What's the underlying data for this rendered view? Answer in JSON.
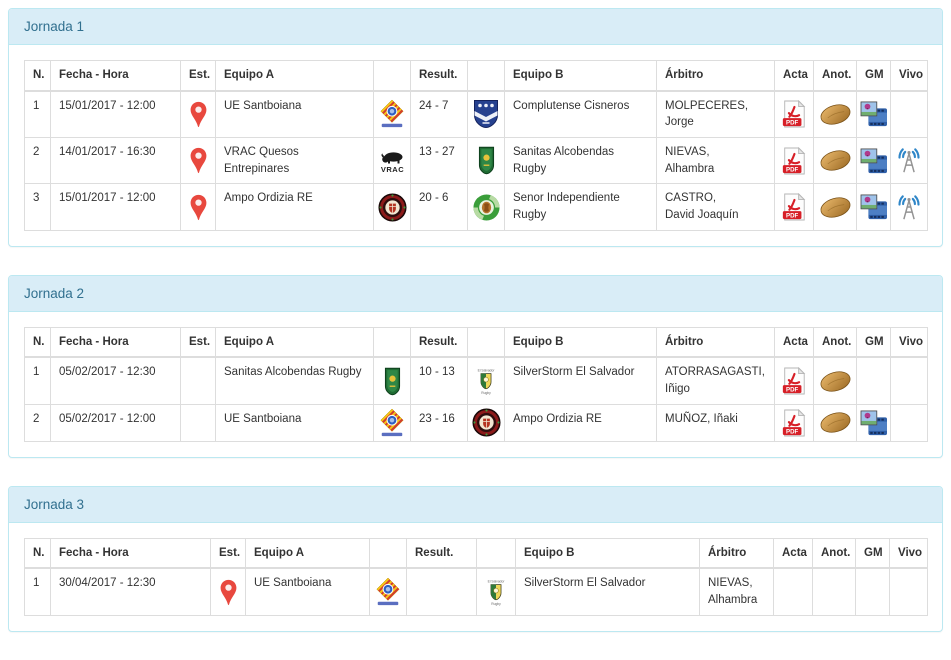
{
  "columns": [
    "N.",
    "Fecha - Hora",
    "Est.",
    "Equipo A",
    "",
    "Result.",
    "",
    "Equipo B",
    "Árbitro",
    "Acta",
    "Anot.",
    "GM",
    "Vivo"
  ],
  "icon_legend": {
    "est": "map-pin-icon",
    "acta": "pdf-document-icon",
    "anot": "rugby-ball-icon",
    "gm": "film-multimedia-icon",
    "vivo": "live-broadcast-antenna-icon"
  },
  "colors": {
    "panel_border": "#bce8f1",
    "panel_heading_bg": "#d9edf7",
    "panel_heading_text": "#31708f",
    "table_border": "#dddddd",
    "text": "#333333",
    "pin_red": "#e8483e",
    "pdf_red": "#d71f27"
  },
  "jornadas": [
    {
      "title": "Jornada 1",
      "rows": [
        {
          "n": "1",
          "fecha": "15/01/2017 - 12:00",
          "est": true,
          "equipo_a": "UE Santboiana",
          "logo_a": "santboiana",
          "result": "24 - 7",
          "logo_b": "cisneros",
          "equipo_b": "Complutense Cisneros",
          "arbitro": [
            "MOLPECERES,",
            "Jorge"
          ],
          "acta": true,
          "anot": true,
          "gm": true,
          "vivo": false
        },
        {
          "n": "2",
          "fecha": "14/01/2017 - 16:30",
          "est": true,
          "equipo_a": "VRAC Quesos Entrepinares",
          "logo_a": "vrac",
          "result": "13 - 27",
          "logo_b": "alcobendas",
          "equipo_b": "Sanitas Alcobendas Rugby",
          "arbitro": [
            "NIEVAS,",
            "Alhambra"
          ],
          "acta": true,
          "anot": true,
          "gm": true,
          "vivo": true
        },
        {
          "n": "3",
          "fecha": "15/01/2017 - 12:00",
          "est": true,
          "equipo_a": "Ampo Ordizia RE",
          "logo_a": "ordizia",
          "result": "20 - 6",
          "logo_b": "independiente",
          "equipo_b": "Senor Independiente Rugby",
          "arbitro": [
            "CASTRO,",
            "David Joaquín"
          ],
          "acta": true,
          "anot": true,
          "gm": true,
          "vivo": true
        }
      ]
    },
    {
      "title": "Jornada 2",
      "rows": [
        {
          "n": "1",
          "fecha": "05/02/2017 - 12:30",
          "est": false,
          "equipo_a": "Sanitas Alcobendas Rugby",
          "logo_a": "alcobendas",
          "result": "10 - 13",
          "logo_b": "silverstorm",
          "equipo_b": "SilverStorm El Salvador",
          "arbitro": [
            "ATORRASAGASTI,",
            "Iñigo"
          ],
          "acta": true,
          "anot": true,
          "gm": false,
          "vivo": false
        },
        {
          "n": "2",
          "fecha": "05/02/2017 - 12:00",
          "est": false,
          "equipo_a": "UE Santboiana",
          "logo_a": "santboiana",
          "result": "23 - 16",
          "logo_b": "ordizia",
          "equipo_b": "Ampo Ordizia RE",
          "arbitro": [
            "MUÑOZ, Iñaki"
          ],
          "acta": true,
          "anot": true,
          "gm": true,
          "vivo": false
        }
      ]
    },
    {
      "title": "Jornada 3",
      "rows": [
        {
          "n": "1",
          "fecha": "30/04/2017 - 12:30",
          "est": true,
          "equipo_a": "UE Santboiana",
          "logo_a": "santboiana",
          "result": "",
          "logo_b": "silverstorm",
          "equipo_b": "SilverStorm El Salvador",
          "arbitro": [
            "NIEVAS,",
            "Alhambra"
          ],
          "acta": false,
          "anot": false,
          "gm": false,
          "vivo": false
        }
      ]
    }
  ]
}
